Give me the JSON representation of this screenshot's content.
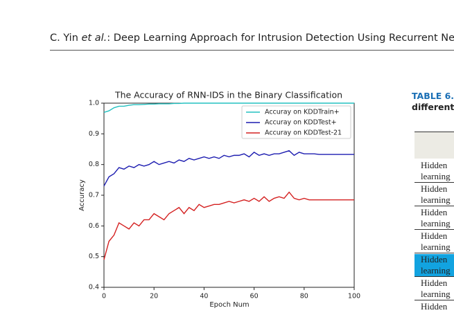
{
  "header": {
    "parts": [
      "C. Yin ",
      "et al.",
      ": Deep Learning Approach for Intrusion Detection Using Recurrent Neural Networks"
    ]
  },
  "chart_data": {
    "type": "line",
    "title": "The Accuracy of RNN-IDS  in the Binary Classification",
    "x_label": "Epoch Num",
    "y_label": "Accuracy",
    "x": [
      0,
      2,
      4,
      6,
      8,
      10,
      12,
      14,
      16,
      18,
      20,
      22,
      24,
      26,
      28,
      30,
      32,
      34,
      36,
      38,
      40,
      42,
      44,
      46,
      48,
      50,
      52,
      54,
      56,
      58,
      60,
      62,
      64,
      66,
      68,
      70,
      72,
      74,
      76,
      78,
      80,
      82,
      84,
      86,
      88,
      90,
      92,
      94,
      96,
      98,
      100
    ],
    "series": [
      {
        "name": "Accuray on KDDTrain+",
        "color": "#22c0c0",
        "values": [
          0.97,
          0.975,
          0.985,
          0.99,
          0.99,
          0.993,
          0.995,
          0.995,
          0.996,
          0.997,
          0.997,
          0.998,
          0.998,
          0.998,
          0.999,
          0.999,
          1.0,
          1.0,
          1.0,
          1.0,
          1.0,
          1.0,
          1.0,
          1.0,
          1.0,
          1.0,
          1.0,
          1.0,
          1.0,
          1.0,
          1.0,
          1.0,
          1.0,
          1.0,
          1.0,
          1.0,
          1.0,
          1.0,
          1.0,
          1.0,
          1.0,
          1.0,
          1.0,
          1.0,
          1.0,
          1.0,
          1.0,
          1.0,
          1.0,
          1.0,
          1.0
        ]
      },
      {
        "name": "Accuray on KDDTest+",
        "color": "#1c1cb0",
        "values": [
          0.73,
          0.76,
          0.77,
          0.79,
          0.785,
          0.795,
          0.79,
          0.8,
          0.795,
          0.8,
          0.81,
          0.8,
          0.805,
          0.81,
          0.805,
          0.815,
          0.81,
          0.82,
          0.815,
          0.82,
          0.825,
          0.82,
          0.825,
          0.82,
          0.83,
          0.825,
          0.83,
          0.83,
          0.835,
          0.825,
          0.84,
          0.83,
          0.835,
          0.83,
          0.835,
          0.835,
          0.84,
          0.845,
          0.83,
          0.84,
          0.835,
          0.835,
          0.835,
          0.833,
          0.833,
          0.833,
          0.833,
          0.833,
          0.833,
          0.833,
          0.833
        ]
      },
      {
        "name": "Accuray on KDDTest-21",
        "color": "#d42020",
        "values": [
          0.49,
          0.55,
          0.57,
          0.61,
          0.6,
          0.59,
          0.61,
          0.6,
          0.62,
          0.62,
          0.64,
          0.63,
          0.62,
          0.64,
          0.65,
          0.66,
          0.64,
          0.66,
          0.65,
          0.67,
          0.66,
          0.665,
          0.67,
          0.67,
          0.675,
          0.68,
          0.675,
          0.68,
          0.685,
          0.68,
          0.69,
          0.68,
          0.695,
          0.68,
          0.69,
          0.695,
          0.69,
          0.71,
          0.69,
          0.685,
          0.69,
          0.685,
          0.685,
          0.685,
          0.685,
          0.685,
          0.685,
          0.685,
          0.685,
          0.685,
          0.685
        ]
      }
    ],
    "xlim": [
      0,
      100
    ],
    "xticks": [
      0,
      20,
      40,
      60,
      80,
      100
    ],
    "ylim": [
      0.4,
      1.0
    ],
    "yticks": [
      0.4,
      0.5,
      0.6,
      0.7,
      0.8,
      0.9,
      {
        "value": 1.0,
        "label": "1.0"
      }
    ],
    "grid": false,
    "legend": "upper right"
  },
  "table": {
    "label": "TABLE 6.",
    "caption": "different",
    "highlight_row": 4,
    "rows": [
      [
        "Hidden",
        "learning"
      ],
      [
        "Hidden",
        "learning"
      ],
      [
        "Hidden",
        "learning"
      ],
      [
        "Hidden",
        "learning"
      ],
      [
        "Hidden",
        "learning"
      ],
      [
        "Hidden",
        "learning"
      ],
      [
        "Hidden"
      ]
    ]
  }
}
